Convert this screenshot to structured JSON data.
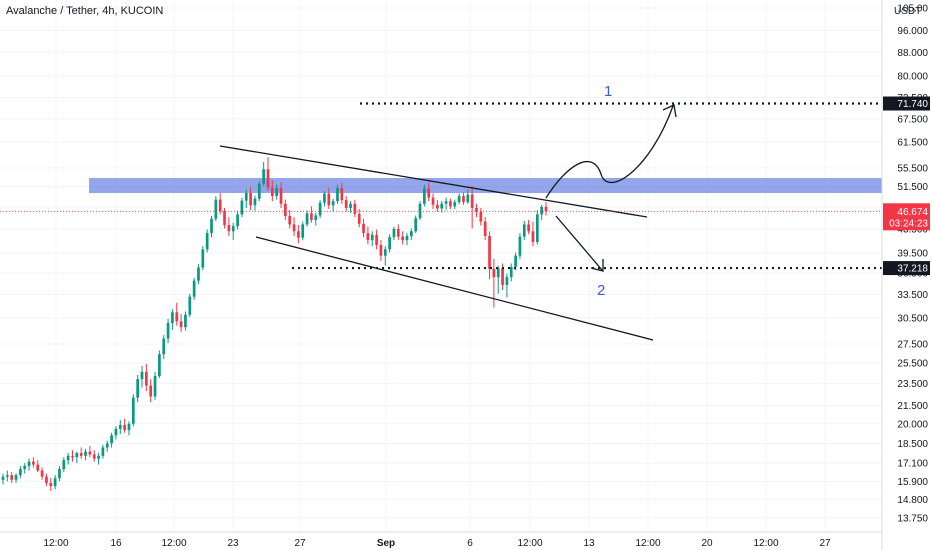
{
  "chart_data": {
    "type": "candlestick",
    "title": "Avalanche / Tether, 4h, KUCOIN",
    "currency": "USDT",
    "price_scale": "log",
    "ylim": [
      13.2,
      105
    ],
    "y_ticks": [
      "105.00",
      "96.000",
      "88.000",
      "80.000",
      "73.500",
      "67.500",
      "61.500",
      "55.500",
      "51.500",
      "47.500",
      "43.500",
      "39.500",
      "36.500",
      "33.500",
      "30.500",
      "27.500",
      "25.500",
      "23.500",
      "21.500",
      "20.000",
      "18.500",
      "17.100",
      "15.900",
      "14.800",
      "13.750"
    ],
    "x_tick_labels": [
      "12:00",
      "16",
      "12:00",
      "23",
      "27",
      "Sep",
      "6",
      "12:00",
      "13",
      "12:00",
      "20",
      "12:00",
      "27"
    ],
    "last_price": {
      "value": "46.674",
      "countdown": "03:24:23",
      "color": "#f23645"
    },
    "levels": [
      {
        "value": 71.74,
        "label": "71.740",
        "style": "dotted"
      },
      {
        "value": 37.218,
        "label": "37.218",
        "style": "dotted"
      }
    ],
    "resistance_zone": {
      "from": 50.2,
      "to": 53.3,
      "color": "#3d5bd9"
    },
    "annotations": [
      {
        "text": "1",
        "meaning": "bullish breakout path to 71.740"
      },
      {
        "text": "2",
        "meaning": "bearish rejection path to 37.218"
      }
    ],
    "channel": "descending",
    "colors": {
      "up": "#089981",
      "down": "#f23645",
      "lines": "#131722",
      "annotation": "#3d5bd9"
    },
    "candles": [
      [
        16.0,
        16.4,
        15.7,
        16.2
      ],
      [
        16.2,
        16.6,
        15.9,
        16.3
      ],
      [
        16.3,
        16.5,
        15.8,
        16.0
      ],
      [
        16.0,
        16.4,
        15.8,
        16.3
      ],
      [
        16.3,
        16.9,
        16.1,
        16.7
      ],
      [
        16.7,
        17.1,
        16.4,
        16.9
      ],
      [
        16.9,
        17.4,
        16.6,
        17.2
      ],
      [
        17.2,
        17.5,
        16.8,
        17.0
      ],
      [
        17.0,
        17.3,
        16.5,
        16.6
      ],
      [
        16.6,
        16.8,
        16.0,
        16.2
      ],
      [
        16.2,
        16.4,
        15.6,
        15.8
      ],
      [
        15.8,
        16.1,
        15.3,
        15.6
      ],
      [
        15.6,
        16.3,
        15.4,
        16.1
      ],
      [
        16.1,
        16.9,
        15.9,
        16.7
      ],
      [
        16.7,
        17.5,
        16.5,
        17.3
      ],
      [
        17.3,
        17.8,
        17.0,
        17.6
      ],
      [
        17.6,
        18.0,
        17.2,
        17.5
      ],
      [
        17.5,
        17.9,
        17.1,
        17.8
      ],
      [
        17.8,
        18.2,
        17.4,
        17.6
      ],
      [
        17.6,
        18.1,
        17.3,
        17.9
      ],
      [
        17.9,
        18.3,
        17.5,
        17.7
      ],
      [
        17.7,
        18.0,
        17.2,
        17.4
      ],
      [
        17.4,
        17.8,
        17.0,
        17.6
      ],
      [
        17.6,
        18.4,
        17.4,
        18.2
      ],
      [
        18.2,
        18.7,
        17.9,
        18.5
      ],
      [
        18.5,
        19.3,
        18.2,
        19.1
      ],
      [
        19.1,
        19.8,
        18.8,
        19.6
      ],
      [
        19.6,
        20.3,
        19.2,
        19.9
      ],
      [
        19.9,
        20.4,
        19.3,
        19.5
      ],
      [
        19.5,
        20.2,
        19.1,
        20.0
      ],
      [
        20.0,
        22.5,
        19.8,
        22.2
      ],
      [
        22.2,
        24.3,
        21.8,
        23.9
      ],
      [
        23.9,
        25.2,
        23.1,
        24.6
      ],
      [
        24.6,
        25.4,
        22.8,
        23.3
      ],
      [
        23.3,
        23.9,
        21.8,
        22.3
      ],
      [
        22.3,
        24.6,
        22.0,
        24.2
      ],
      [
        24.2,
        26.8,
        24.0,
        26.4
      ],
      [
        26.4,
        28.5,
        25.9,
        28.1
      ],
      [
        28.1,
        30.4,
        27.6,
        29.9
      ],
      [
        29.9,
        31.6,
        29.1,
        31.2
      ],
      [
        31.2,
        32.4,
        29.6,
        30.1
      ],
      [
        30.1,
        31.0,
        28.8,
        29.4
      ],
      [
        29.4,
        31.3,
        29.0,
        30.9
      ],
      [
        30.9,
        33.6,
        30.6,
        33.2
      ],
      [
        33.2,
        35.8,
        32.8,
        35.4
      ],
      [
        35.4,
        37.8,
        34.9,
        37.3
      ],
      [
        37.3,
        40.6,
        36.9,
        40.1
      ],
      [
        40.1,
        43.4,
        39.6,
        42.8
      ],
      [
        42.8,
        45.8,
        42.1,
        45.3
      ],
      [
        45.3,
        49.6,
        44.9,
        48.9
      ],
      [
        48.9,
        50.2,
        46.1,
        46.7
      ],
      [
        46.7,
        47.3,
        43.6,
        44.2
      ],
      [
        44.2,
        45.6,
        42.3,
        43.1
      ],
      [
        43.1,
        44.6,
        41.6,
        44.0
      ],
      [
        44.0,
        46.8,
        43.4,
        46.1
      ],
      [
        46.1,
        49.3,
        45.6,
        48.7
      ],
      [
        48.7,
        50.9,
        47.3,
        50.2
      ],
      [
        50.2,
        51.4,
        46.9,
        47.8
      ],
      [
        47.8,
        49.7,
        46.8,
        49.1
      ],
      [
        49.1,
        52.6,
        48.6,
        52.1
      ],
      [
        52.1,
        56.8,
        51.6,
        55.2
      ],
      [
        55.2,
        57.9,
        50.6,
        51.3
      ],
      [
        51.3,
        52.8,
        48.6,
        49.6
      ],
      [
        49.6,
        51.9,
        48.9,
        51.2
      ],
      [
        51.2,
        52.4,
        47.3,
        48.1
      ],
      [
        48.1,
        48.9,
        45.1,
        45.8
      ],
      [
        45.8,
        46.9,
        43.6,
        44.3
      ],
      [
        44.3,
        45.6,
        42.3,
        43.1
      ],
      [
        43.1,
        44.2,
        41.1,
        42.0
      ],
      [
        42.0,
        44.8,
        41.6,
        44.3
      ],
      [
        44.3,
        46.8,
        43.9,
        46.3
      ],
      [
        46.3,
        47.6,
        44.6,
        45.1
      ],
      [
        45.1,
        46.4,
        44.1,
        45.9
      ],
      [
        45.9,
        48.8,
        45.4,
        48.3
      ],
      [
        48.3,
        50.6,
        47.6,
        50.1
      ],
      [
        50.1,
        51.3,
        47.1,
        47.8
      ],
      [
        47.8,
        49.1,
        46.6,
        48.6
      ],
      [
        48.6,
        51.9,
        48.1,
        51.2
      ],
      [
        51.2,
        52.3,
        48.1,
        48.8
      ],
      [
        48.8,
        49.6,
        46.6,
        47.3
      ],
      [
        47.3,
        48.6,
        46.4,
        48.1
      ],
      [
        48.1,
        48.9,
        45.6,
        46.2
      ],
      [
        46.2,
        47.1,
        43.8,
        44.4
      ],
      [
        44.4,
        45.3,
        42.1,
        42.8
      ],
      [
        42.8,
        43.9,
        40.9,
        41.6
      ],
      [
        41.6,
        43.1,
        40.6,
        42.5
      ],
      [
        42.5,
        43.4,
        40.1,
        40.8
      ],
      [
        40.8,
        41.6,
        38.3,
        39.1
      ],
      [
        39.1,
        40.6,
        37.6,
        40.1
      ],
      [
        40.1,
        42.6,
        39.6,
        42.1
      ],
      [
        42.1,
        43.9,
        41.6,
        43.5
      ],
      [
        43.5,
        44.3,
        41.6,
        42.2
      ],
      [
        42.2,
        43.1,
        40.9,
        41.6
      ],
      [
        41.6,
        42.8,
        40.8,
        42.3
      ],
      [
        42.3,
        43.6,
        41.6,
        43.1
      ],
      [
        43.1,
        45.9,
        42.8,
        45.4
      ],
      [
        45.4,
        48.6,
        45.1,
        48.1
      ],
      [
        48.1,
        51.9,
        47.6,
        51.1
      ],
      [
        51.1,
        52.3,
        48.6,
        49.3
      ],
      [
        49.3,
        50.1,
        47.1,
        47.9
      ],
      [
        47.9,
        48.8,
        46.6,
        47.2
      ],
      [
        47.2,
        48.6,
        46.4,
        48.1
      ],
      [
        48.1,
        49.3,
        46.9,
        48.6
      ],
      [
        48.6,
        49.1,
        47.1,
        47.6
      ],
      [
        47.6,
        48.9,
        47.1,
        48.4
      ],
      [
        48.4,
        50.1,
        48.0,
        49.6
      ],
      [
        49.6,
        50.3,
        47.9,
        48.4
      ],
      [
        48.4,
        50.9,
        48.1,
        49.9
      ],
      [
        49.9,
        51.6,
        43.6,
        47.3
      ],
      [
        47.3,
        48.1,
        45.6,
        46.6
      ],
      [
        46.6,
        47.3,
        44.1,
        44.8
      ],
      [
        44.8,
        45.6,
        41.6,
        42.3
      ],
      [
        42.3,
        43.1,
        35.6,
        37.1
      ],
      [
        37.1,
        38.6,
        31.8,
        35.9
      ],
      [
        35.9,
        37.6,
        33.6,
        37.2
      ],
      [
        37.2,
        37.9,
        34.1,
        34.8
      ],
      [
        34.8,
        36.4,
        33.1,
        35.9
      ],
      [
        35.9,
        37.9,
        35.3,
        37.4
      ],
      [
        37.4,
        39.6,
        36.9,
        39.1
      ],
      [
        39.1,
        42.8,
        38.6,
        42.2
      ],
      [
        42.2,
        44.9,
        41.6,
        44.3
      ],
      [
        44.3,
        45.1,
        42.6,
        43.1
      ],
      [
        43.1,
        44.8,
        40.6,
        41.3
      ],
      [
        41.3,
        46.9,
        40.9,
        46.1
      ],
      [
        46.1,
        47.9,
        45.1,
        47.5
      ],
      [
        47.5,
        48.4,
        45.9,
        46.674
      ]
    ]
  }
}
